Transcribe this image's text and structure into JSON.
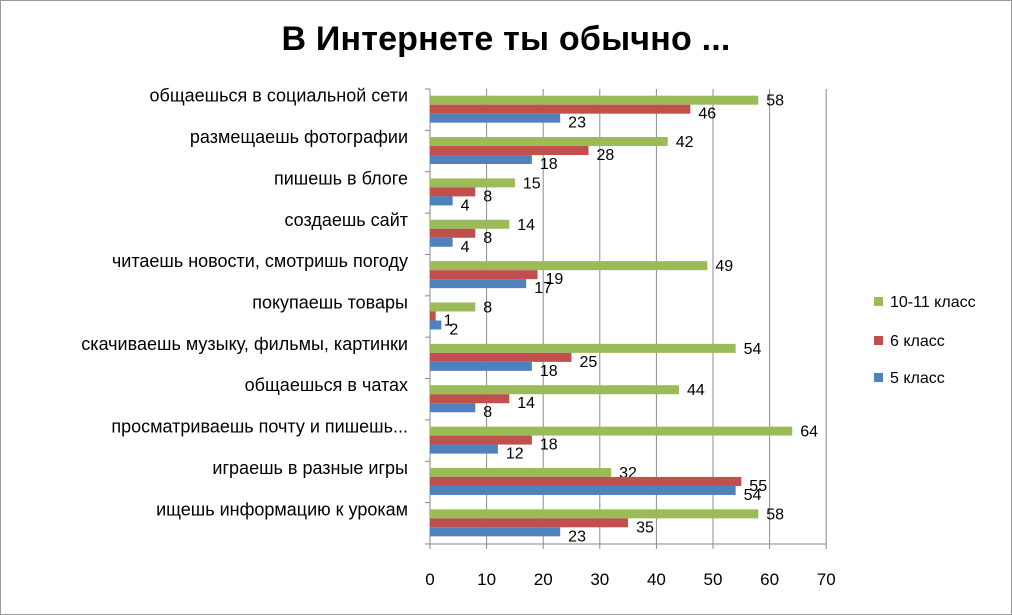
{
  "chart_data": {
    "type": "bar",
    "orientation": "horizontal",
    "title": "В Интернете ты обычно ...",
    "categories": [
      "общаешься в социальной сети",
      "размещаешь фотографии",
      "пишешь в блоге",
      "создаешь сайт",
      "читаешь новости, смотришь погоду",
      "покупаешь товары",
      "скачиваешь музыку, фильмы, картинки",
      "общаешься в чатах",
      "просматриваешь почту и пишешь...",
      "играешь в разные игры",
      "ищешь информацию  к урокам"
    ],
    "series": [
      {
        "name": "10-11 класс",
        "color": "#9BBB59",
        "values": [
          58,
          42,
          15,
          14,
          49,
          8,
          54,
          44,
          64,
          32,
          58
        ]
      },
      {
        "name": "6 класс",
        "color": "#C0504D",
        "values": [
          46,
          28,
          8,
          8,
          19,
          1,
          25,
          14,
          18,
          55,
          35
        ]
      },
      {
        "name": "5 класс",
        "color": "#4F81BD",
        "values": [
          23,
          18,
          4,
          4,
          17,
          2,
          18,
          8,
          12,
          54,
          23
        ]
      }
    ],
    "xlim": [
      0,
      70
    ],
    "xticks": [
      0,
      10,
      20,
      30,
      40,
      50,
      60,
      70
    ],
    "grid": true,
    "legend_position": "right"
  }
}
